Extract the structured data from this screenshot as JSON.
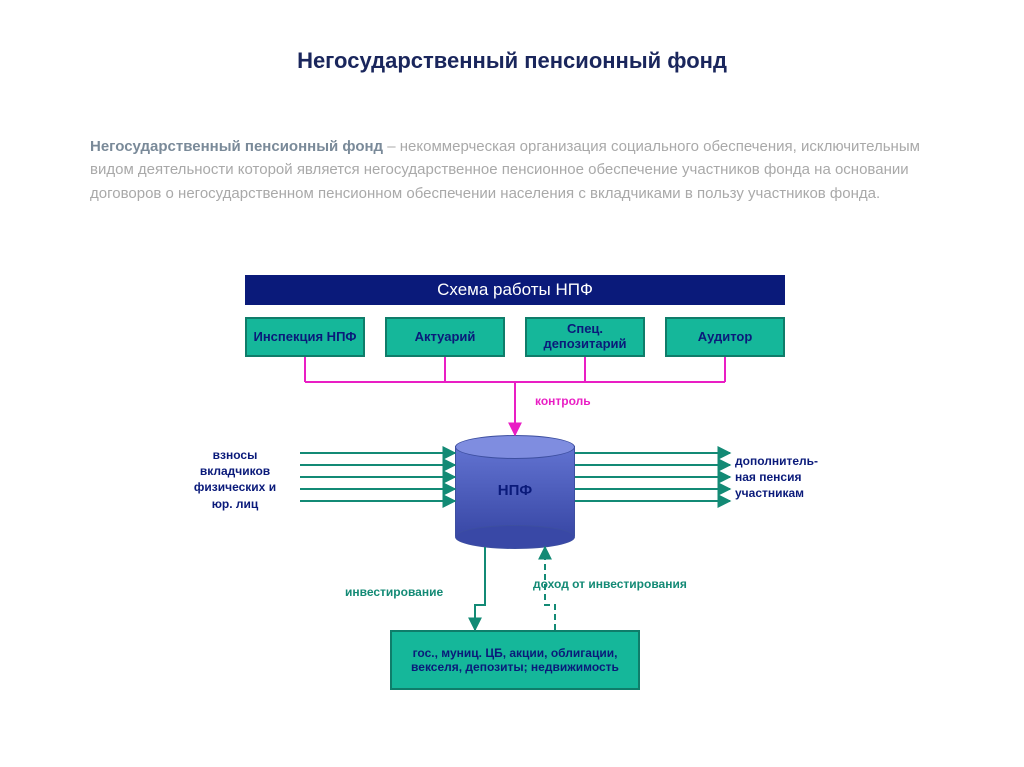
{
  "title": {
    "text": "Негосударственный пенсионный фонд",
    "color": "#1a265c",
    "fontsize": 22
  },
  "definition": {
    "term": "Негосударственный пенсионный фонд",
    "body": " – некоммерческая организация социального обеспечения, исключительным видом деятельности которой является негосударственное пенсионное обеспечение участников фонда на основании договоров о негосударственном пенсионном обеспечении населения с вкладчиками в пользу участников фонда."
  },
  "colors": {
    "navy": "#0a1a7a",
    "teal_fill": "#15b79a",
    "teal_border": "#0f7d6a",
    "magenta": "#e91ec4",
    "cyl_top": "#7f8de0",
    "cyl_mid": "#6273d1",
    "cyl_bot": "#3948a6",
    "arrow_teal": "#138a75"
  },
  "header_bar": {
    "text": "Схема работы НПФ",
    "fontsize": 17,
    "fg": "#ffffff"
  },
  "oversight": [
    {
      "text": "Инспекция НПФ"
    },
    {
      "text": "Актуарий"
    },
    {
      "text": "Спец. депозитарий"
    },
    {
      "text": "Аудитор"
    }
  ],
  "oversight_font": {
    "color": "#0a1a7a",
    "size": 13
  },
  "control_label": {
    "text": "контроль",
    "color": "#e91ec4",
    "size": 12
  },
  "cylinder_label": {
    "text": "НПФ",
    "color": "#0a1a7a",
    "size": 15
  },
  "left_label": {
    "l1": "взносы",
    "l2": "вкладчиков",
    "l3": "физических и",
    "l4": "юр. лиц",
    "color": "#0a1a7a",
    "size": 12
  },
  "right_label": {
    "l1": "дополнитель-",
    "l2": "ная пенсия",
    "l3": "участникам",
    "color": "#0a1a7a",
    "size": 12
  },
  "invest_label": {
    "text": "инвестирование",
    "color": "#138a75",
    "size": 12
  },
  "income_label": {
    "text": "доход от инвестирования",
    "color": "#138a75",
    "size": 12
  },
  "invest_box": {
    "text": "гос., муниц. ЦБ, акции, облигации, векселя, депозиты; недвижимость",
    "color": "#0a1a7a",
    "size": 12
  },
  "flow_arrow_count": 5
}
